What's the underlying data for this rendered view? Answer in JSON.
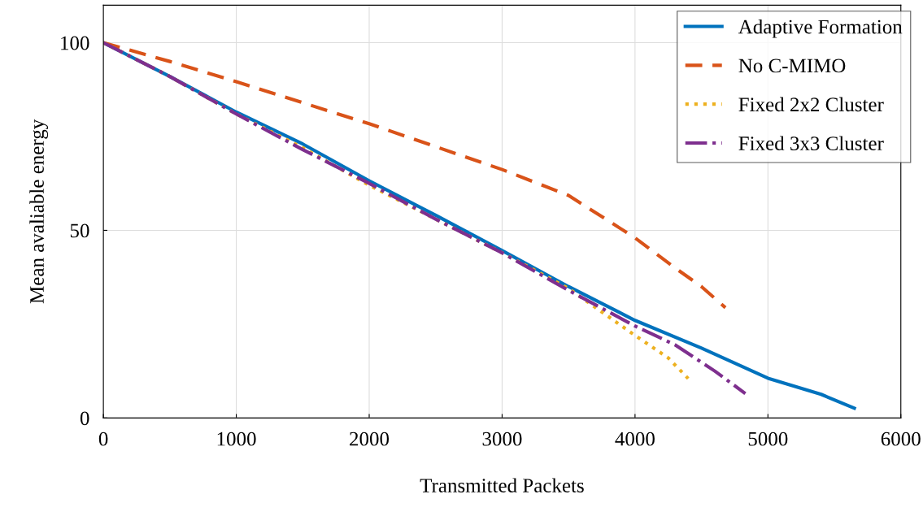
{
  "chart_data": {
    "type": "line",
    "xlabel": "Transmitted Packets",
    "ylabel": "Mean avaliable energy",
    "xlim": [
      0,
      6000
    ],
    "xticks": [
      0,
      1000,
      2000,
      3000,
      4000,
      5000,
      6000
    ],
    "ylim": [
      0,
      110
    ],
    "yticks": [
      0,
      50,
      100
    ],
    "grid": true,
    "legend": "top right",
    "series": [
      {
        "name": "Adaptive Formation",
        "color": "#0072bd",
        "line_style": "solid",
        "x": [
          0,
          500,
          1000,
          1500,
          2000,
          2500,
          3000,
          3500,
          4000,
          4500,
          5000,
          5400,
          5650
        ],
        "values": [
          100,
          91,
          81.5,
          73,
          63.2,
          54,
          44.6,
          35,
          26,
          18.6,
          10.6,
          6.3,
          2.6
        ]
      },
      {
        "name": "No C-MIMO",
        "color": "#d95319",
        "line_style": "dashed",
        "x": [
          0,
          500,
          1000,
          1500,
          2000,
          2500,
          3000,
          3500,
          4000,
          4300,
          4500,
          4680
        ],
        "values": [
          100,
          95,
          89.6,
          84,
          78.4,
          72.3,
          66.2,
          59.3,
          48,
          40,
          35,
          29.4
        ]
      },
      {
        "name": "Fixed 2x2 Cluster",
        "color": "#edb120",
        "line_style": "dotted",
        "x": [
          0,
          500,
          1000,
          1500,
          2000,
          2500,
          3000,
          3500,
          4000,
          4250,
          4400
        ],
        "values": [
          100,
          91,
          81,
          72,
          62,
          53,
          44,
          34.5,
          22,
          16,
          10.5
        ]
      },
      {
        "name": "Fixed 3x3 Cluster",
        "color": "#7e2f8e",
        "line_style": "dashdot",
        "x": [
          0,
          500,
          1000,
          1500,
          2000,
          2500,
          3000,
          3500,
          4000,
          4300,
          4600,
          4830
        ],
        "values": [
          100,
          91,
          81,
          71.5,
          62.5,
          53,
          44,
          34,
          24.5,
          19.5,
          12.5,
          6.5
        ]
      }
    ]
  }
}
